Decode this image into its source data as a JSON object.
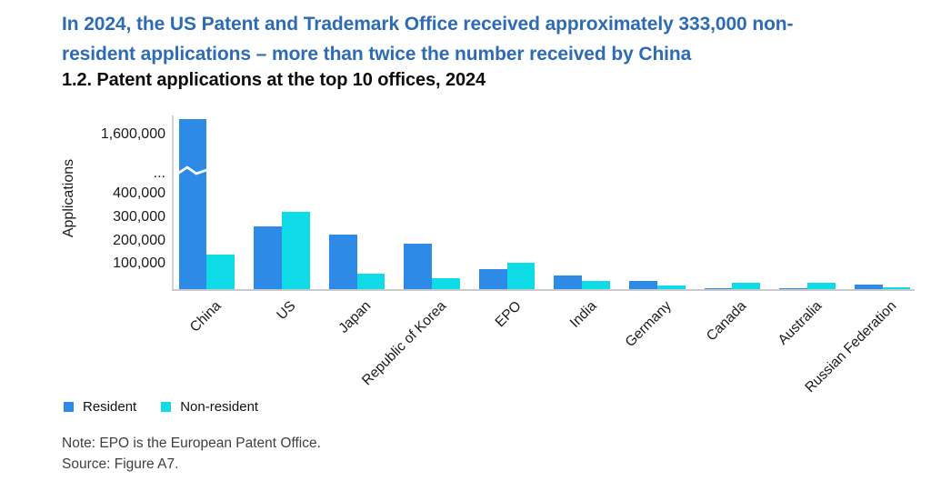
{
  "header": {
    "headline_lines": [
      "In 2024, the US Patent and Trademark Office received approximately 333,000 non-",
      "resident applications – more than twice the number received by China"
    ],
    "figure_title": "1.2. Patent applications at the top 10 offices, 2024"
  },
  "chart_data": {
    "type": "bar",
    "title": "1.2. Patent applications at the top 10 offices, 2024",
    "ylabel": "Applications",
    "xlabel": "",
    "categories": [
      "China",
      "US",
      "Japan",
      "Republic of Korea",
      "EPO",
      "India",
      "Germany",
      "Canada",
      "Australia",
      "Russian Federation"
    ],
    "series": [
      {
        "name": "Resident",
        "color": "#2d8be7",
        "values": [
          1650000,
          270000,
          235000,
          194000,
          84000,
          58000,
          35000,
          5000,
          3000,
          19000
        ]
      },
      {
        "name": "Non-resident",
        "color": "#0edbe6",
        "values": [
          150000,
          333000,
          68000,
          48000,
          112000,
          37000,
          17000,
          28000,
          28000,
          6000
        ]
      }
    ],
    "y_ticks": [
      {
        "label": "1,600,000",
        "value": 1600000
      },
      {
        "label": "...",
        "value": null
      },
      {
        "label": "400,000",
        "value": 400000
      },
      {
        "label": "300,000",
        "value": 300000
      },
      {
        "label": "200,000",
        "value": 200000
      },
      {
        "label": "100,000",
        "value": 100000
      }
    ],
    "axis_break": {
      "on_series": "Resident",
      "on_category": "China",
      "note": "y-axis broken between 400,000 and 1,600,000"
    },
    "legend_position": "bottom-left",
    "grid": false
  },
  "legend": {
    "items": [
      {
        "label": "Resident",
        "color": "#2d8be7"
      },
      {
        "label": "Non-resident",
        "color": "#0edbe6"
      }
    ]
  },
  "footer": {
    "note": "Note: EPO is the European Patent Office.",
    "source": "Source: Figure A7."
  },
  "colors": {
    "headline": "#2d6cb3",
    "bar_resident": "#2d8be7",
    "bar_nonresident": "#0edbe6",
    "axis_line": "#d2d2d2",
    "text": "#1a1a1a",
    "note_text": "#3f3f3f",
    "background": "#ffffff"
  }
}
